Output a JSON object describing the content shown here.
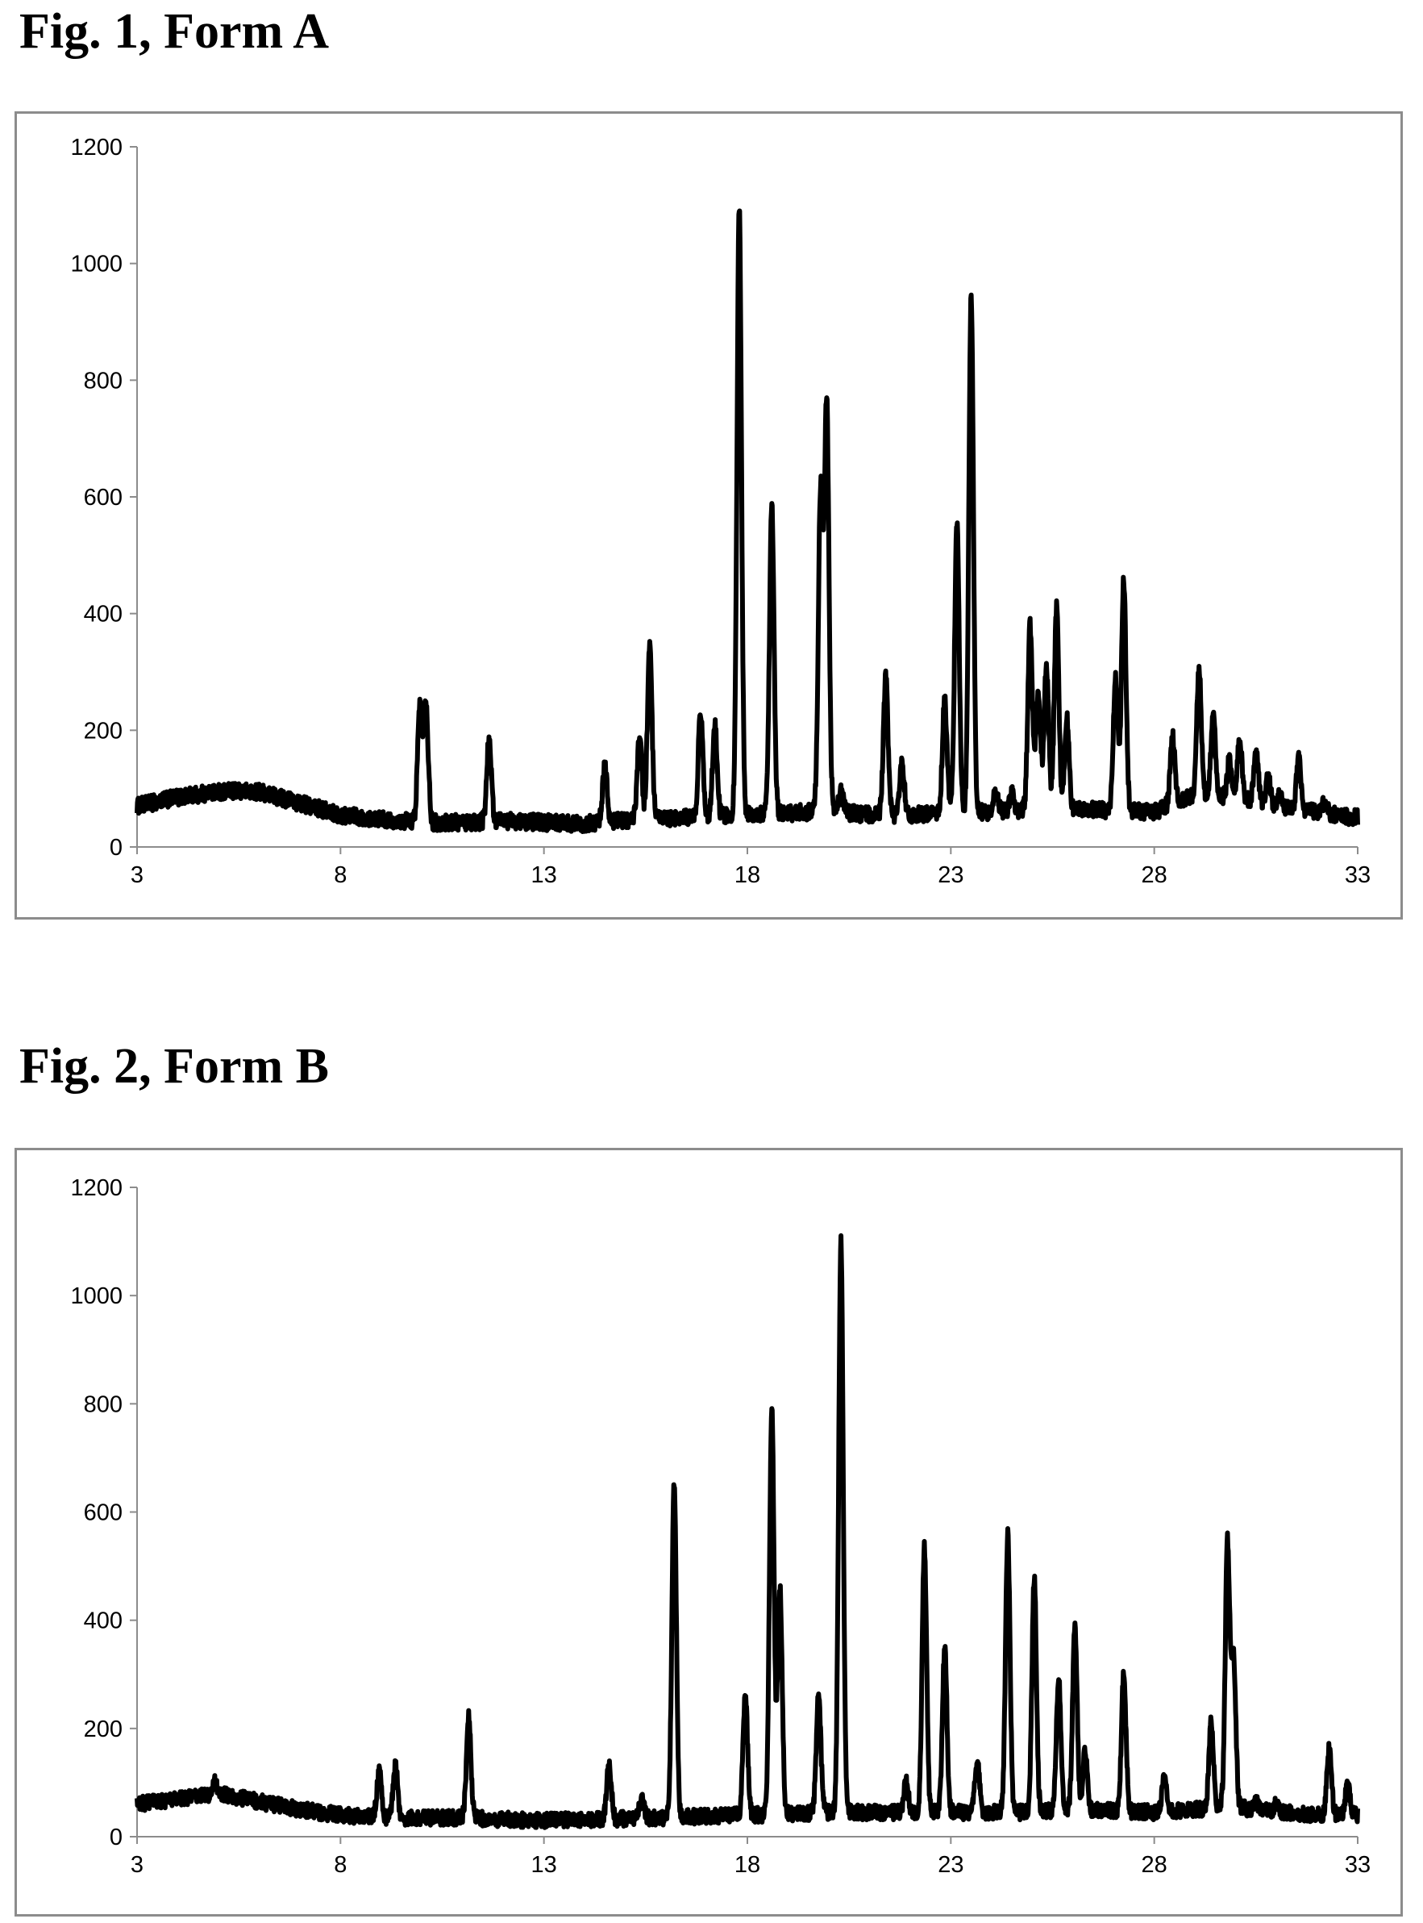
{
  "chart_data": [
    {
      "type": "line",
      "title": "Fig. 1, Form A",
      "xlabel": "",
      "ylabel": "",
      "xlim": [
        3,
        33
      ],
      "ylim": [
        0,
        1200
      ],
      "x_ticks": [
        "3",
        "8",
        "13",
        "18",
        "23",
        "28",
        "33"
      ],
      "y_ticks": [
        "0",
        "200",
        "400",
        "600",
        "800",
        "1000",
        "1200"
      ],
      "grid": false,
      "legend": "none",
      "line_color": "#000000",
      "background": [
        [
          3,
          70
        ],
        [
          4,
          85
        ],
        [
          5,
          95
        ],
        [
          6,
          95
        ],
        [
          7,
          75
        ],
        [
          8,
          55
        ],
        [
          9,
          48
        ],
        [
          10,
          42
        ],
        [
          11,
          42
        ],
        [
          12,
          45
        ],
        [
          13,
          42
        ],
        [
          14,
          40
        ],
        [
          15,
          45
        ],
        [
          16,
          48
        ],
        [
          17,
          52
        ],
        [
          18,
          55
        ],
        [
          19,
          58
        ],
        [
          20,
          62
        ],
        [
          21,
          55
        ],
        [
          22,
          55
        ],
        [
          23,
          60
        ],
        [
          24,
          60
        ],
        [
          25,
          65
        ],
        [
          26,
          65
        ],
        [
          27,
          62
        ],
        [
          28,
          60
        ],
        [
          29,
          90
        ],
        [
          30,
          85
        ],
        [
          31,
          70
        ],
        [
          32,
          60
        ],
        [
          33,
          50
        ]
      ],
      "series": [
        {
          "peaks": [
            [
              9.95,
              240
            ],
            [
              10.1,
              250
            ],
            [
              11.65,
              185
            ],
            [
              14.5,
              140
            ],
            [
              15.35,
              195
            ],
            [
              15.6,
              345
            ],
            [
              16.85,
              230
            ],
            [
              17.2,
              210
            ],
            [
              17.8,
              1095
            ],
            [
              18.6,
              580
            ],
            [
              19.8,
              610
            ],
            [
              19.95,
              760
            ],
            [
              20.3,
              95
            ],
            [
              21.4,
              290
            ],
            [
              21.8,
              145
            ],
            [
              22.85,
              250
            ],
            [
              23.15,
              560
            ],
            [
              23.5,
              945
            ],
            [
              24.1,
              90
            ],
            [
              24.5,
              90
            ],
            [
              24.95,
              380
            ],
            [
              25.15,
              270
            ],
            [
              25.35,
              310
            ],
            [
              25.6,
              410
            ],
            [
              25.85,
              220
            ],
            [
              27.05,
              290
            ],
            [
              27.25,
              460
            ],
            [
              28.45,
              190
            ],
            [
              29.1,
              305
            ],
            [
              29.45,
              225
            ],
            [
              29.85,
              150
            ],
            [
              30.1,
              185
            ],
            [
              30.5,
              165
            ],
            [
              30.8,
              120
            ],
            [
              31.1,
              90
            ],
            [
              31.55,
              150
            ],
            [
              32.2,
              80
            ]
          ]
        }
      ]
    },
    {
      "type": "line",
      "title": "Fig. 2, Form B",
      "xlabel": "",
      "ylabel": "",
      "xlim": [
        3,
        33
      ],
      "ylim": [
        0,
        1200
      ],
      "x_ticks": [
        "3",
        "8",
        "13",
        "18",
        "23",
        "28",
        "33"
      ],
      "y_ticks": [
        "0",
        "200",
        "400",
        "600",
        "800",
        "1000",
        "1200"
      ],
      "grid": false,
      "legend": "none",
      "line_color": "#000000",
      "background": [
        [
          3,
          60
        ],
        [
          4,
          70
        ],
        [
          5,
          80
        ],
        [
          6,
          65
        ],
        [
          7,
          50
        ],
        [
          8,
          40
        ],
        [
          9,
          35
        ],
        [
          10,
          35
        ],
        [
          11,
          35
        ],
        [
          12,
          32
        ],
        [
          13,
          30
        ],
        [
          14,
          32
        ],
        [
          15,
          33
        ],
        [
          16,
          35
        ],
        [
          17,
          38
        ],
        [
          18,
          40
        ],
        [
          19,
          42
        ],
        [
          20,
          45
        ],
        [
          21,
          45
        ],
        [
          22,
          45
        ],
        [
          23,
          45
        ],
        [
          24,
          45
        ],
        [
          25,
          45
        ],
        [
          26,
          50
        ],
        [
          27,
          48
        ],
        [
          28,
          45
        ],
        [
          29,
          50
        ],
        [
          30,
          55
        ],
        [
          31,
          45
        ],
        [
          32,
          40
        ],
        [
          33,
          40
        ]
      ],
      "series": [
        {
          "peaks": [
            [
              4.9,
              100
            ],
            [
              8.95,
              120
            ],
            [
              9.35,
              130
            ],
            [
              11.15,
              220
            ],
            [
              14.6,
              135
            ],
            [
              15.4,
              70
            ],
            [
              16.2,
              650
            ],
            [
              17.95,
              260
            ],
            [
              18.6,
              795
            ],
            [
              18.8,
              460
            ],
            [
              19.75,
              265
            ],
            [
              20.3,
              1100
            ],
            [
              21.9,
              100
            ],
            [
              22.35,
              535
            ],
            [
              22.85,
              350
            ],
            [
              23.65,
              140
            ],
            [
              24.4,
              560
            ],
            [
              25.05,
              480
            ],
            [
              25.65,
              295
            ],
            [
              26.05,
              390
            ],
            [
              26.3,
              160
            ],
            [
              27.25,
              300
            ],
            [
              28.25,
              110
            ],
            [
              29.4,
              210
            ],
            [
              29.8,
              545
            ],
            [
              29.95,
              330
            ],
            [
              30.5,
              65
            ],
            [
              31.0,
              60
            ],
            [
              32.3,
              165
            ],
            [
              32.75,
              100
            ]
          ]
        }
      ]
    }
  ]
}
